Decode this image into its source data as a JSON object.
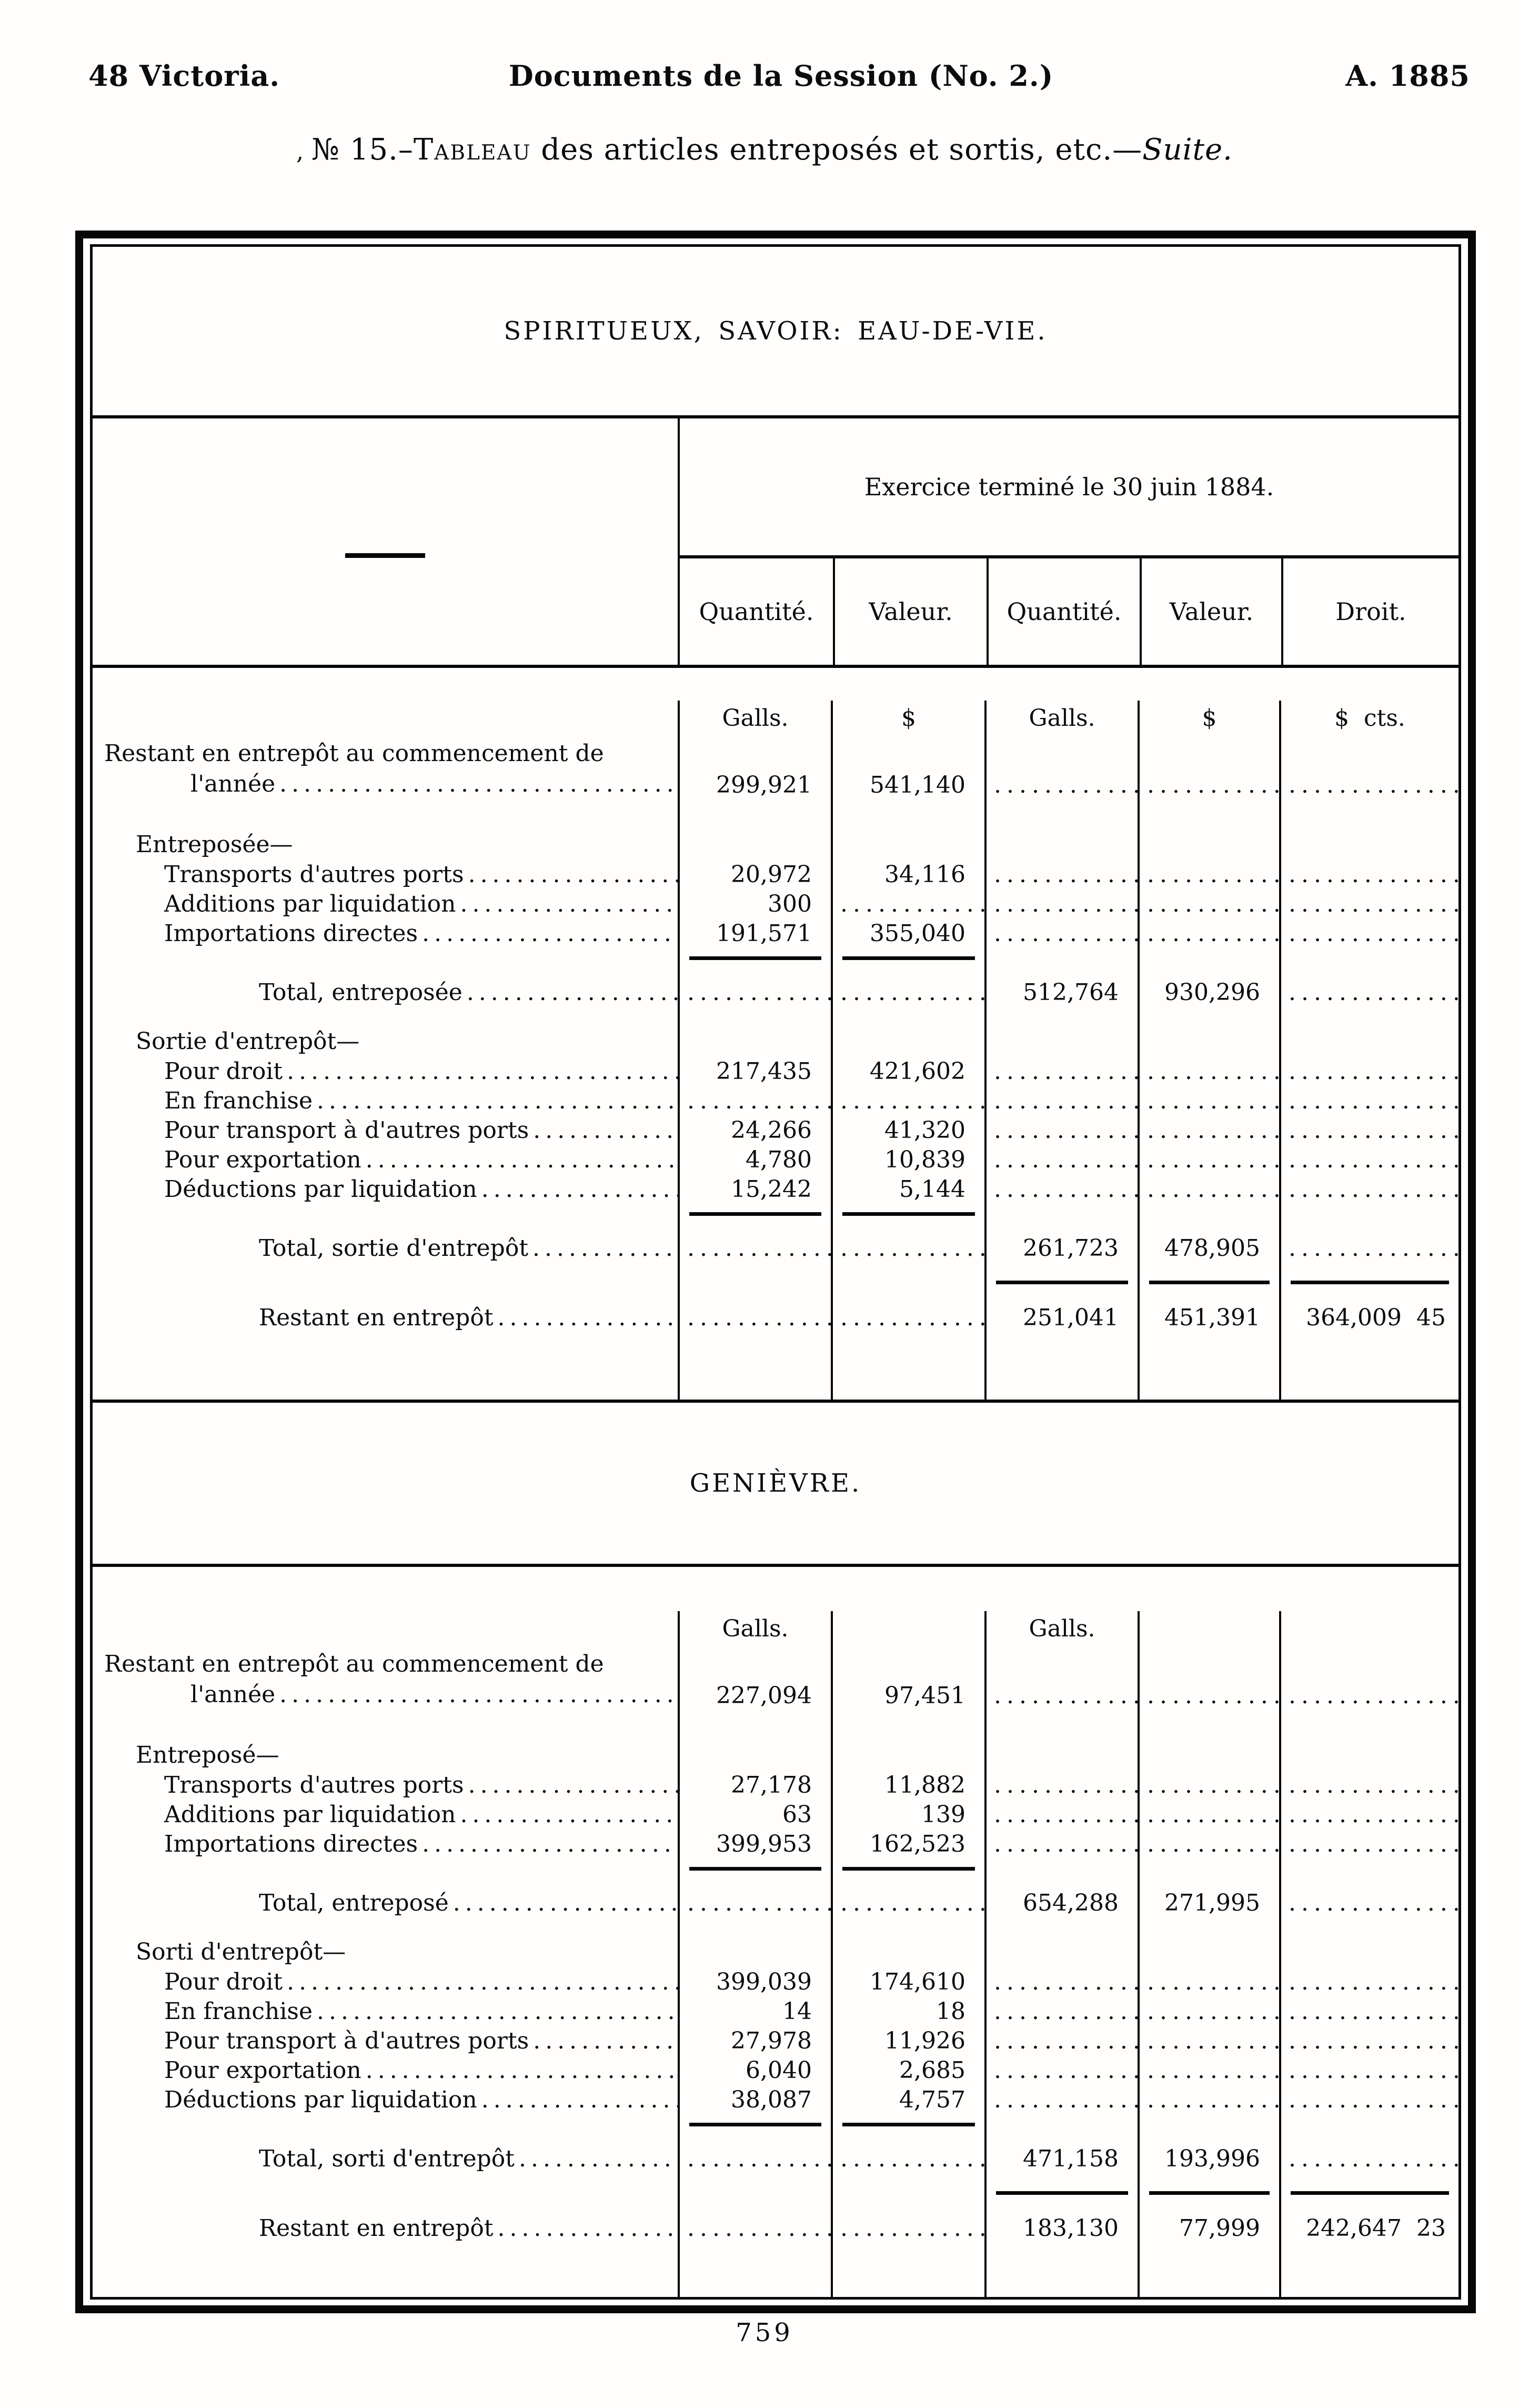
{
  "page": {
    "running_head": {
      "left": "48 Victoria.",
      "center": "Documents de la Session (No. 2.)",
      "right": "A. 1885"
    },
    "doc_title": {
      "lead_mark": ",",
      "prefix": "№ 15.–",
      "tableau": "Tableau",
      "rest": " des articles entreposés et sortis, etc.—",
      "suite": "Suite."
    },
    "page_number": "759"
  },
  "table": {
    "exercice_header": "Exercice terminé le 30 juin 1884.",
    "columns": [
      "Quantité.",
      "Valeur.",
      "Quantité.",
      "Valeur.",
      "Droit."
    ],
    "sections": [
      {
        "id": "eau",
        "title": "SPIRITUEUX, SAVOIR: EAU-DE-VIE.",
        "units": [
          "Galls.",
          "$",
          "Galls.",
          "$",
          "$  cts."
        ],
        "rows": [
          {
            "t": "units"
          },
          {
            "t": "data2",
            "l1": "Restant en entrepôt au commencement de",
            "l2": "l'année",
            "v": [
              "299,921",
              "541,140",
              null,
              null,
              null
            ]
          },
          {
            "t": "space",
            "h": 46
          },
          {
            "t": "group",
            "label": "Entreposée—"
          },
          {
            "t": "item",
            "label": "Transports d'autres ports",
            "v": [
              "20,972",
              "34,116",
              null,
              null,
              null
            ]
          },
          {
            "t": "item",
            "label": "Additions par liquidation",
            "v": [
              "300",
              null,
              null,
              null,
              null
            ]
          },
          {
            "t": "item",
            "label": "Importations directes",
            "v": [
              "191,571",
              "355,040",
              null,
              null,
              null
            ]
          },
          {
            "t": "bars",
            "cols": [
              0,
              1
            ]
          },
          {
            "t": "total",
            "label": "Total, entreposée",
            "v": [
              null,
              null,
              "512,764",
              "930,296",
              null
            ]
          },
          {
            "t": "space",
            "h": 18
          },
          {
            "t": "group",
            "label": "Sortie d'entrepôt—"
          },
          {
            "t": "item",
            "label": "Pour droit",
            "v": [
              "217,435",
              "421,602",
              null,
              null,
              null
            ]
          },
          {
            "t": "item",
            "label": "En franchise",
            "v": [
              null,
              null,
              null,
              null,
              null
            ]
          },
          {
            "t": "item",
            "label": "Pour transport à d'autres ports",
            "v": [
              "24,266",
              "41,320",
              null,
              null,
              null
            ]
          },
          {
            "t": "item",
            "label": "Pour exportation",
            "v": [
              "4,780",
              "10,839",
              null,
              null,
              null
            ]
          },
          {
            "t": "item",
            "label": "Déductions par liquidation",
            "v": [
              "15,242",
              "5,144",
              null,
              null,
              null
            ]
          },
          {
            "t": "bars",
            "cols": [
              0,
              1
            ]
          },
          {
            "t": "total",
            "label": "Total, sortie d'entrepôt",
            "v": [
              null,
              null,
              "261,723",
              "478,905",
              null
            ]
          },
          {
            "t": "bars",
            "cols": [
              2,
              3,
              4
            ]
          },
          {
            "t": "rtotal",
            "label": "Restant en entrepôt",
            "v": [
              null,
              null,
              "251,041",
              "451,391",
              "364,009  45"
            ]
          }
        ]
      },
      {
        "id": "gen",
        "title": "GENIÈVRE.",
        "units": [
          "Galls.",
          "",
          "Galls.",
          "",
          ""
        ],
        "rows": [
          {
            "t": "units"
          },
          {
            "t": "data2",
            "l1": "Restant en entrepôt au commencement de",
            "l2": "l'année",
            "v": [
              "227,094",
              "97,451",
              null,
              null,
              null
            ]
          },
          {
            "t": "space",
            "h": 46
          },
          {
            "t": "group",
            "label": "Entreposé—"
          },
          {
            "t": "item",
            "label": "Transports d'autres ports",
            "v": [
              "27,178",
              "11,882",
              null,
              null,
              null
            ]
          },
          {
            "t": "item",
            "label": "Additions par liquidation",
            "v": [
              "63",
              "139",
              null,
              null,
              null
            ]
          },
          {
            "t": "item",
            "label": "Importations directes",
            "v": [
              "399,953",
              "162,523",
              null,
              null,
              null
            ]
          },
          {
            "t": "bars",
            "cols": [
              0,
              1
            ]
          },
          {
            "t": "total",
            "label": "Total, entreposé",
            "v": [
              null,
              null,
              "654,288",
              "271,995",
              null
            ]
          },
          {
            "t": "space",
            "h": 18
          },
          {
            "t": "group",
            "label": "Sorti d'entrepôt—"
          },
          {
            "t": "item",
            "label": "Pour droit",
            "v": [
              "399,039",
              "174,610",
              null,
              null,
              null
            ]
          },
          {
            "t": "item",
            "label": "En franchise",
            "v": [
              "14",
              "18",
              null,
              null,
              null
            ]
          },
          {
            "t": "item",
            "label": "Pour transport à d'autres ports",
            "v": [
              "27,978",
              "11,926",
              null,
              null,
              null
            ]
          },
          {
            "t": "item",
            "label": "Pour exportation",
            "v": [
              "6,040",
              "2,685",
              null,
              null,
              null
            ]
          },
          {
            "t": "item",
            "label": "Déductions par liquidation",
            "v": [
              "38,087",
              "4,757",
              null,
              null,
              null
            ]
          },
          {
            "t": "bars",
            "cols": [
              0,
              1
            ]
          },
          {
            "t": "total",
            "label": "Total, sorti d'entrepôt",
            "v": [
              null,
              null,
              "471,158",
              "193,996",
              null
            ]
          },
          {
            "t": "bars",
            "cols": [
              2,
              3,
              4
            ]
          },
          {
            "t": "rtotal",
            "label": "Restant en entrepôt",
            "v": [
              null,
              null,
              "183,130",
              "77,999",
              "242,647  23"
            ]
          }
        ]
      }
    ]
  }
}
